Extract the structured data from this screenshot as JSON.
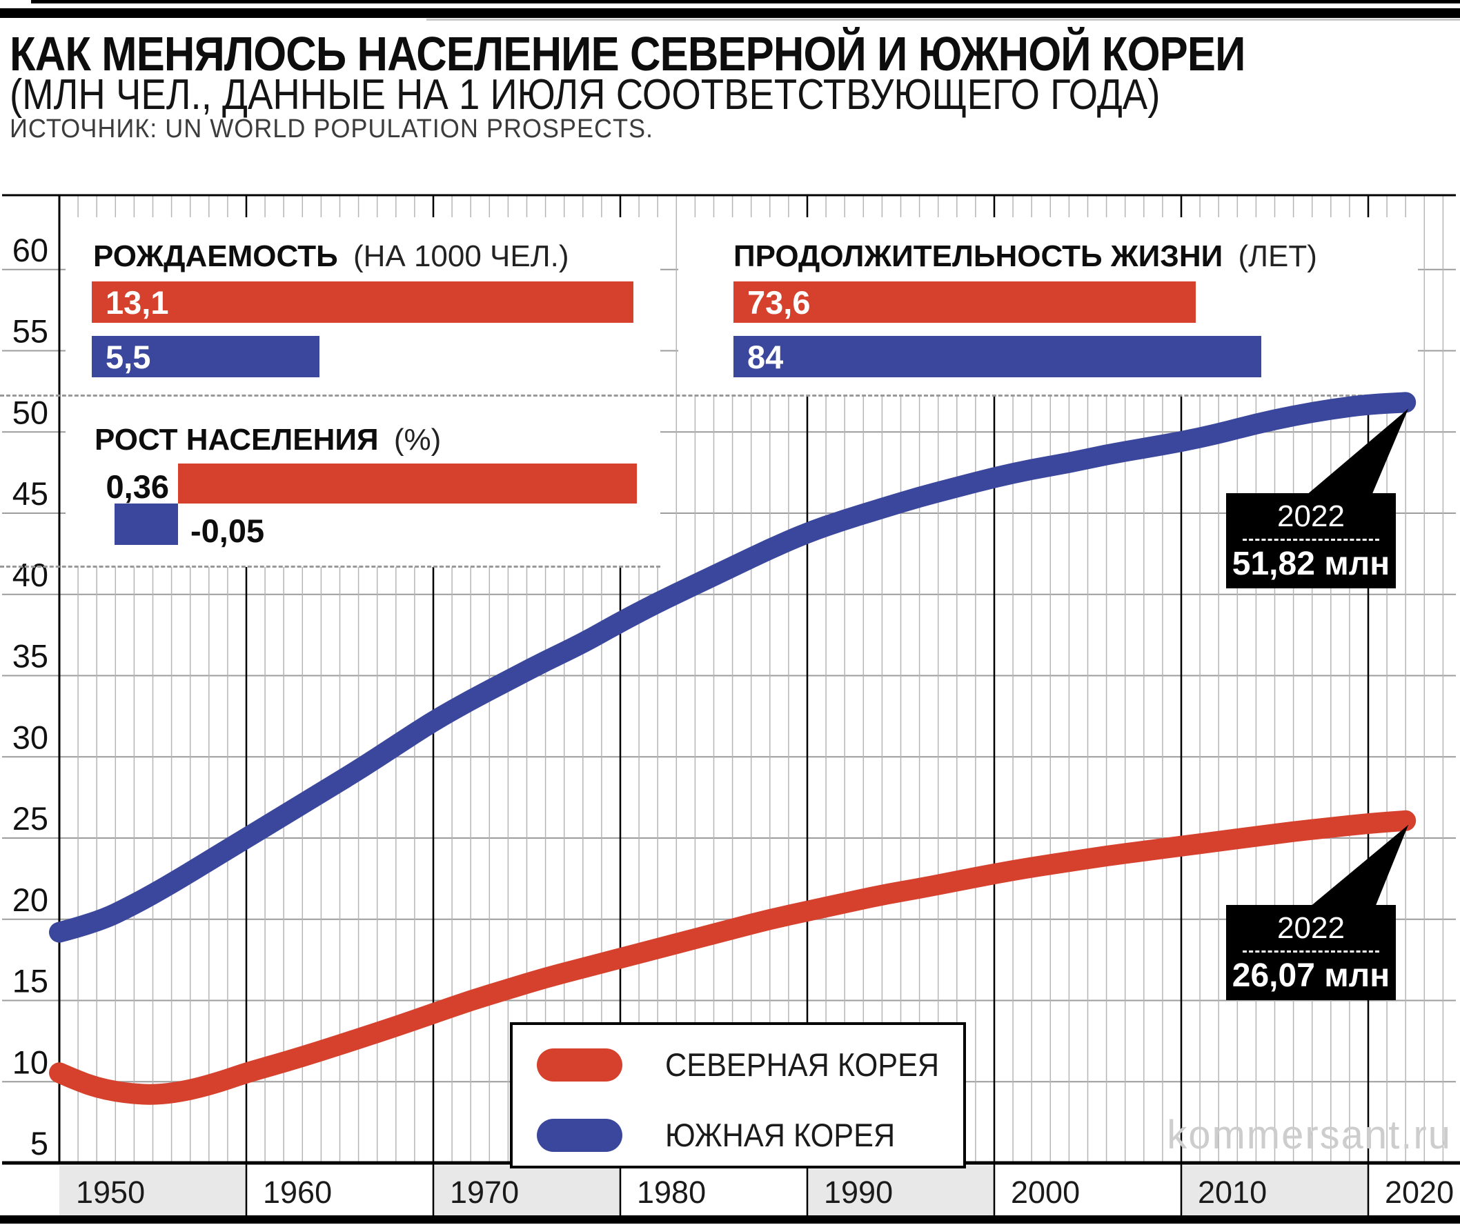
{
  "header": {
    "title": "КАК МЕНЯЛОСЬ НАСЕЛЕНИЕ СЕВЕРНОЙ И ЮЖНОЙ КОРЕИ",
    "subtitle": "(МЛН ЧЕЛ., ДАННЫЕ НА 1 ИЮЛЯ СООТВЕТСТВУЮЩЕГО ГОДА)",
    "source": "ИСТОЧНИК: UN WORLD POPULATION PROSPECTS."
  },
  "watermark": "kommersant.ru",
  "colors": {
    "north": "#d5412d",
    "south": "#3a479c",
    "grid_h": "#9c9c9c",
    "grid_minor": "#b5b5b5",
    "grid_decade": "#000000",
    "band_gray": "#e8e8e8",
    "axis": "#000000"
  },
  "chart_data": {
    "type": "line",
    "title": "КАК МЕНЯЛОСЬ НАСЕЛЕНИЕ СЕВЕРНОЙ И ЮЖНОЙ КОРЕИ",
    "unit": "млн чел.",
    "x_axis": {
      "range": [
        1950,
        2022
      ],
      "decade_ticks": [
        1950,
        1960,
        1970,
        1980,
        1990,
        2000,
        2010,
        2020
      ],
      "minor_step_years": 1
    },
    "y_axis": {
      "range": [
        5,
        64.5
      ],
      "ticks": [
        60,
        55,
        50,
        45,
        40,
        35,
        30,
        25,
        20,
        15,
        10,
        5
      ]
    },
    "grid": true,
    "legend_position": "bottom-center",
    "series": [
      {
        "name": "СЕВЕРНАЯ КОРЕЯ",
        "color_key": "north",
        "points": [
          [
            1950,
            10.55
          ],
          [
            1951,
            10.05
          ],
          [
            1952,
            9.65
          ],
          [
            1953,
            9.4
          ],
          [
            1954,
            9.25
          ],
          [
            1955,
            9.2
          ],
          [
            1956,
            9.3
          ],
          [
            1957,
            9.5
          ],
          [
            1958,
            9.8
          ],
          [
            1959,
            10.15
          ],
          [
            1960,
            10.55
          ],
          [
            1962,
            11.2
          ],
          [
            1964,
            11.9
          ],
          [
            1966,
            12.65
          ],
          [
            1968,
            13.4
          ],
          [
            1970,
            14.2
          ],
          [
            1972,
            15.0
          ],
          [
            1974,
            15.7
          ],
          [
            1976,
            16.4
          ],
          [
            1978,
            17.0
          ],
          [
            1980,
            17.6
          ],
          [
            1982,
            18.2
          ],
          [
            1984,
            18.8
          ],
          [
            1986,
            19.4
          ],
          [
            1988,
            20.0
          ],
          [
            1990,
            20.5
          ],
          [
            1992,
            21.0
          ],
          [
            1994,
            21.5
          ],
          [
            1996,
            21.9
          ],
          [
            1998,
            22.35
          ],
          [
            2000,
            22.8
          ],
          [
            2002,
            23.2
          ],
          [
            2004,
            23.55
          ],
          [
            2006,
            23.9
          ],
          [
            2008,
            24.2
          ],
          [
            2010,
            24.5
          ],
          [
            2012,
            24.8
          ],
          [
            2014,
            25.1
          ],
          [
            2016,
            25.4
          ],
          [
            2018,
            25.65
          ],
          [
            2020,
            25.9
          ],
          [
            2022,
            26.07
          ]
        ]
      },
      {
        "name": "ЮЖНАЯ КОРЕЯ",
        "color_key": "south",
        "points": [
          [
            1950,
            19.2
          ],
          [
            1952,
            19.8
          ],
          [
            1954,
            20.9
          ],
          [
            1956,
            22.2
          ],
          [
            1958,
            23.6
          ],
          [
            1960,
            25.0
          ],
          [
            1962,
            26.4
          ],
          [
            1964,
            27.8
          ],
          [
            1966,
            29.2
          ],
          [
            1968,
            30.7
          ],
          [
            1970,
            32.2
          ],
          [
            1972,
            33.5
          ],
          [
            1974,
            34.7
          ],
          [
            1976,
            35.9
          ],
          [
            1978,
            37.0
          ],
          [
            1980,
            38.3
          ],
          [
            1982,
            39.5
          ],
          [
            1984,
            40.6
          ],
          [
            1986,
            41.7
          ],
          [
            1988,
            42.8
          ],
          [
            1990,
            43.8
          ],
          [
            1992,
            44.6
          ],
          [
            1994,
            45.3
          ],
          [
            1996,
            46.0
          ],
          [
            1998,
            46.6
          ],
          [
            2000,
            47.2
          ],
          [
            2002,
            47.7
          ],
          [
            2004,
            48.1
          ],
          [
            2006,
            48.6
          ],
          [
            2008,
            49.0
          ],
          [
            2010,
            49.4
          ],
          [
            2012,
            49.9
          ],
          [
            2014,
            50.5
          ],
          [
            2016,
            51.0
          ],
          [
            2018,
            51.4
          ],
          [
            2020,
            51.7
          ],
          [
            2022,
            51.82
          ]
        ]
      }
    ],
    "callouts": [
      {
        "series": "ЮЖНАЯ КОРЕЯ",
        "year_label": "2022",
        "value": 51.82,
        "value_label": "51,82 млн"
      },
      {
        "series": "СЕВЕРНАЯ КОРЕЯ",
        "year_label": "2022",
        "value": 26.07,
        "value_label": "26,07 млн"
      }
    ],
    "insets": [
      {
        "id": "birth_rate",
        "title_bold": "РОЖДАЕМОСТЬ",
        "title_note": "(НА 1000 ЧЕЛ.)",
        "bars": [
          {
            "country": "СЕВЕРНАЯ КОРЕЯ",
            "color_key": "north",
            "value": 13.1,
            "label": "13,1"
          },
          {
            "country": "ЮЖНАЯ КОРЕЯ",
            "color_key": "south",
            "value": 5.5,
            "label": "5,5"
          }
        ]
      },
      {
        "id": "life_expectancy",
        "title_bold": "ПРОДОЛЖИТЕЛЬНОСТЬ ЖИЗНИ",
        "title_note": "(ЛЕТ)",
        "bars": [
          {
            "country": "СЕВЕРНАЯ КОРЕЯ",
            "color_key": "north",
            "value": 73.6,
            "label": "73,6"
          },
          {
            "country": "ЮЖНАЯ КОРЕЯ",
            "color_key": "south",
            "value": 84,
            "label": "84"
          }
        ]
      },
      {
        "id": "population_growth",
        "title_bold": "РОСТ НАСЕЛЕНИЯ",
        "title_note": "(%)",
        "bars": [
          {
            "country": "СЕВЕРНАЯ КОРЕЯ",
            "color_key": "north",
            "value": 0.36,
            "label": "0,36"
          },
          {
            "country": "ЮЖНАЯ КОРЕЯ",
            "color_key": "south",
            "value": -0.05,
            "label": "-0,05"
          }
        ]
      }
    ]
  }
}
